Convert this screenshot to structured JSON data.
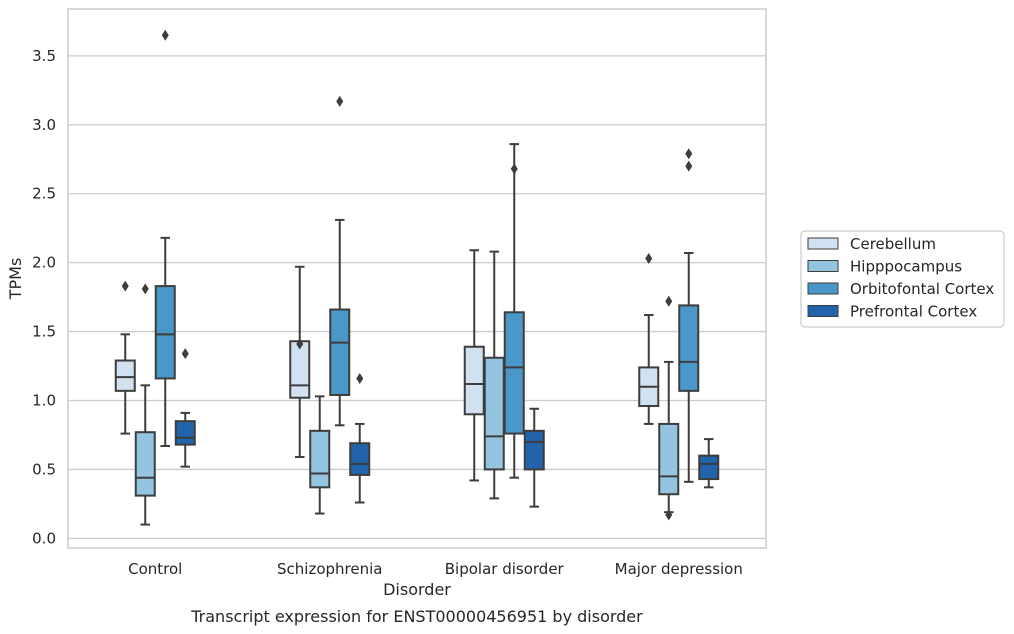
{
  "chart_data": {
    "type": "box",
    "title": "",
    "caption": "Transcript expression for ENST00000456951 by disorder",
    "xlabel": "Disorder",
    "ylabel": "TPMs",
    "ylim": [
      -0.07,
      3.84
    ],
    "yticks": [
      0.0,
      0.5,
      1.0,
      1.5,
      2.0,
      2.5,
      3.0,
      3.5
    ],
    "ytick_labels": [
      "0.0",
      "0.5",
      "1.0",
      "1.5",
      "2.0",
      "2.5",
      "3.0",
      "3.5"
    ],
    "grid": "horizontal",
    "legend_position": "right",
    "categories": [
      "Control",
      "Schizophrenia",
      "Bipolar disorder",
      "Major depression"
    ],
    "series": [
      {
        "name": "Cerebellum",
        "color": "#d0e1f2",
        "boxes": [
          {
            "whisker_low": 0.76,
            "q1": 1.07,
            "median": 1.17,
            "q3": 1.29,
            "whisker_high": 1.48,
            "outliers": [
              1.83
            ]
          },
          {
            "whisker_low": 0.59,
            "q1": 1.02,
            "median": 1.11,
            "q3": 1.43,
            "whisker_high": 1.97,
            "outliers": [
              1.41
            ]
          },
          {
            "whisker_low": 0.42,
            "q1": 0.9,
            "median": 1.12,
            "q3": 1.39,
            "whisker_high": 2.09,
            "outliers": []
          },
          {
            "whisker_low": 0.83,
            "q1": 0.96,
            "median": 1.1,
            "q3": 1.24,
            "whisker_high": 1.62,
            "outliers": [
              2.03
            ]
          }
        ]
      },
      {
        "name": "Hipppocampus",
        "color": "#94c4df",
        "boxes": [
          {
            "whisker_low": 0.1,
            "q1": 0.31,
            "median": 0.44,
            "q3": 0.77,
            "whisker_high": 1.11,
            "outliers": [
              1.81
            ]
          },
          {
            "whisker_low": 0.18,
            "q1": 0.37,
            "median": 0.47,
            "q3": 0.78,
            "whisker_high": 1.03,
            "outliers": []
          },
          {
            "whisker_low": 0.29,
            "q1": 0.5,
            "median": 0.74,
            "q3": 1.31,
            "whisker_high": 2.08,
            "outliers": []
          },
          {
            "whisker_low": 0.19,
            "q1": 0.32,
            "median": 0.45,
            "q3": 0.83,
            "whisker_high": 1.28,
            "outliers": [
              0.17,
              1.72
            ]
          }
        ]
      },
      {
        "name": "Orbitofontal Cortex",
        "color": "#4a98c9",
        "boxes": [
          {
            "whisker_low": 0.67,
            "q1": 1.16,
            "median": 1.48,
            "q3": 1.83,
            "whisker_high": 2.18,
            "outliers": [
              3.65
            ]
          },
          {
            "whisker_low": 0.82,
            "q1": 1.04,
            "median": 1.42,
            "q3": 1.66,
            "whisker_high": 2.31,
            "outliers": [
              3.17
            ]
          },
          {
            "whisker_low": 0.44,
            "q1": 0.76,
            "median": 1.24,
            "q3": 1.64,
            "whisker_high": 2.86,
            "outliers": [
              2.68
            ]
          },
          {
            "whisker_low": 0.41,
            "q1": 1.07,
            "median": 1.28,
            "q3": 1.69,
            "whisker_high": 2.07,
            "outliers": [
              2.7,
              2.79
            ]
          }
        ]
      },
      {
        "name": "Prefrontal Cortex",
        "color": "#2164ab",
        "boxes": [
          {
            "whisker_low": 0.52,
            "q1": 0.68,
            "median": 0.73,
            "q3": 0.85,
            "whisker_high": 0.91,
            "outliers": [
              1.34
            ]
          },
          {
            "whisker_low": 0.26,
            "q1": 0.46,
            "median": 0.54,
            "q3": 0.69,
            "whisker_high": 0.83,
            "outliers": [
              1.16
            ]
          },
          {
            "whisker_low": 0.23,
            "q1": 0.5,
            "median": 0.7,
            "q3": 0.78,
            "whisker_high": 0.94,
            "outliers": []
          },
          {
            "whisker_low": 0.37,
            "q1": 0.43,
            "median": 0.54,
            "q3": 0.6,
            "whisker_high": 0.72,
            "outliers": []
          }
        ]
      }
    ]
  }
}
